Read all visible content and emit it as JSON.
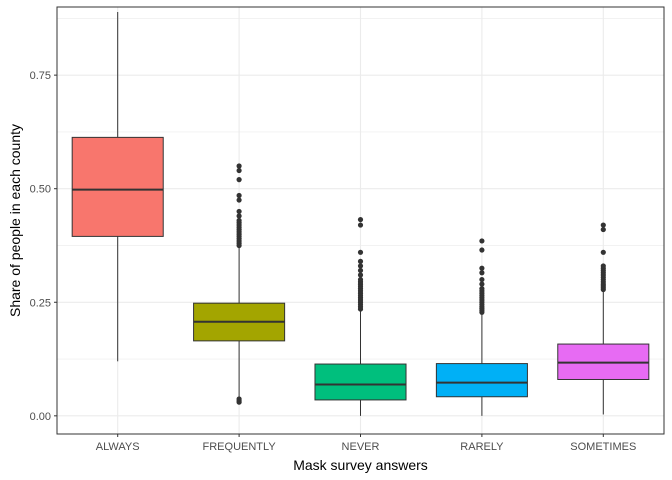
{
  "chart_data": {
    "type": "boxplot",
    "title": "",
    "xlabel": "Mask survey answers",
    "ylabel": "Share of people in each county",
    "ylim": [
      -0.04,
      0.9
    ],
    "yticks": [
      0.0,
      0.25,
      0.5,
      0.75
    ],
    "ytick_labels": [
      "0.00",
      "0.25",
      "0.50",
      "0.75"
    ],
    "grid": true,
    "legend": "none",
    "categories": [
      "ALWAYS",
      "FREQUENTLY",
      "NEVER",
      "RARELY",
      "SOMETIMES"
    ],
    "boxes": [
      {
        "category": "ALWAYS",
        "color": "#F8766D",
        "whisker_low": 0.12,
        "q1": 0.395,
        "median": 0.498,
        "q3": 0.613,
        "whisker_high": 0.889,
        "outliers": []
      },
      {
        "category": "FREQUENTLY",
        "color": "#A3A500",
        "whisker_low": 0.042,
        "q1": 0.165,
        "median": 0.207,
        "q3": 0.248,
        "whisker_high": 0.37,
        "outliers": [
          0.03,
          0.033,
          0.037,
          0.375,
          0.38,
          0.385,
          0.39,
          0.395,
          0.4,
          0.405,
          0.41,
          0.415,
          0.42,
          0.425,
          0.43,
          0.44,
          0.45,
          0.475,
          0.485,
          0.52,
          0.54,
          0.55
        ]
      },
      {
        "category": "NEVER",
        "color": "#00BF7D",
        "whisker_low": 0.0,
        "q1": 0.035,
        "median": 0.069,
        "q3": 0.114,
        "whisker_high": 0.232,
        "outliers": [
          0.235,
          0.24,
          0.245,
          0.25,
          0.255,
          0.26,
          0.265,
          0.27,
          0.275,
          0.28,
          0.285,
          0.29,
          0.295,
          0.3,
          0.31,
          0.32,
          0.33,
          0.34,
          0.36,
          0.42,
          0.432
        ]
      },
      {
        "category": "RARELY",
        "color": "#00B0F6",
        "whisker_low": 0.0,
        "q1": 0.042,
        "median": 0.073,
        "q3": 0.115,
        "whisker_high": 0.225,
        "outliers": [
          0.228,
          0.232,
          0.236,
          0.24,
          0.245,
          0.25,
          0.255,
          0.26,
          0.265,
          0.27,
          0.275,
          0.28,
          0.29,
          0.3,
          0.315,
          0.325,
          0.365,
          0.385
        ]
      },
      {
        "category": "SOMETIMES",
        "color": "#E76BF3",
        "whisker_low": 0.003,
        "q1": 0.08,
        "median": 0.117,
        "q3": 0.158,
        "whisker_high": 0.275,
        "outliers": [
          0.278,
          0.282,
          0.286,
          0.29,
          0.295,
          0.3,
          0.305,
          0.31,
          0.315,
          0.32,
          0.325,
          0.33,
          0.36,
          0.41,
          0.42
        ]
      }
    ]
  }
}
